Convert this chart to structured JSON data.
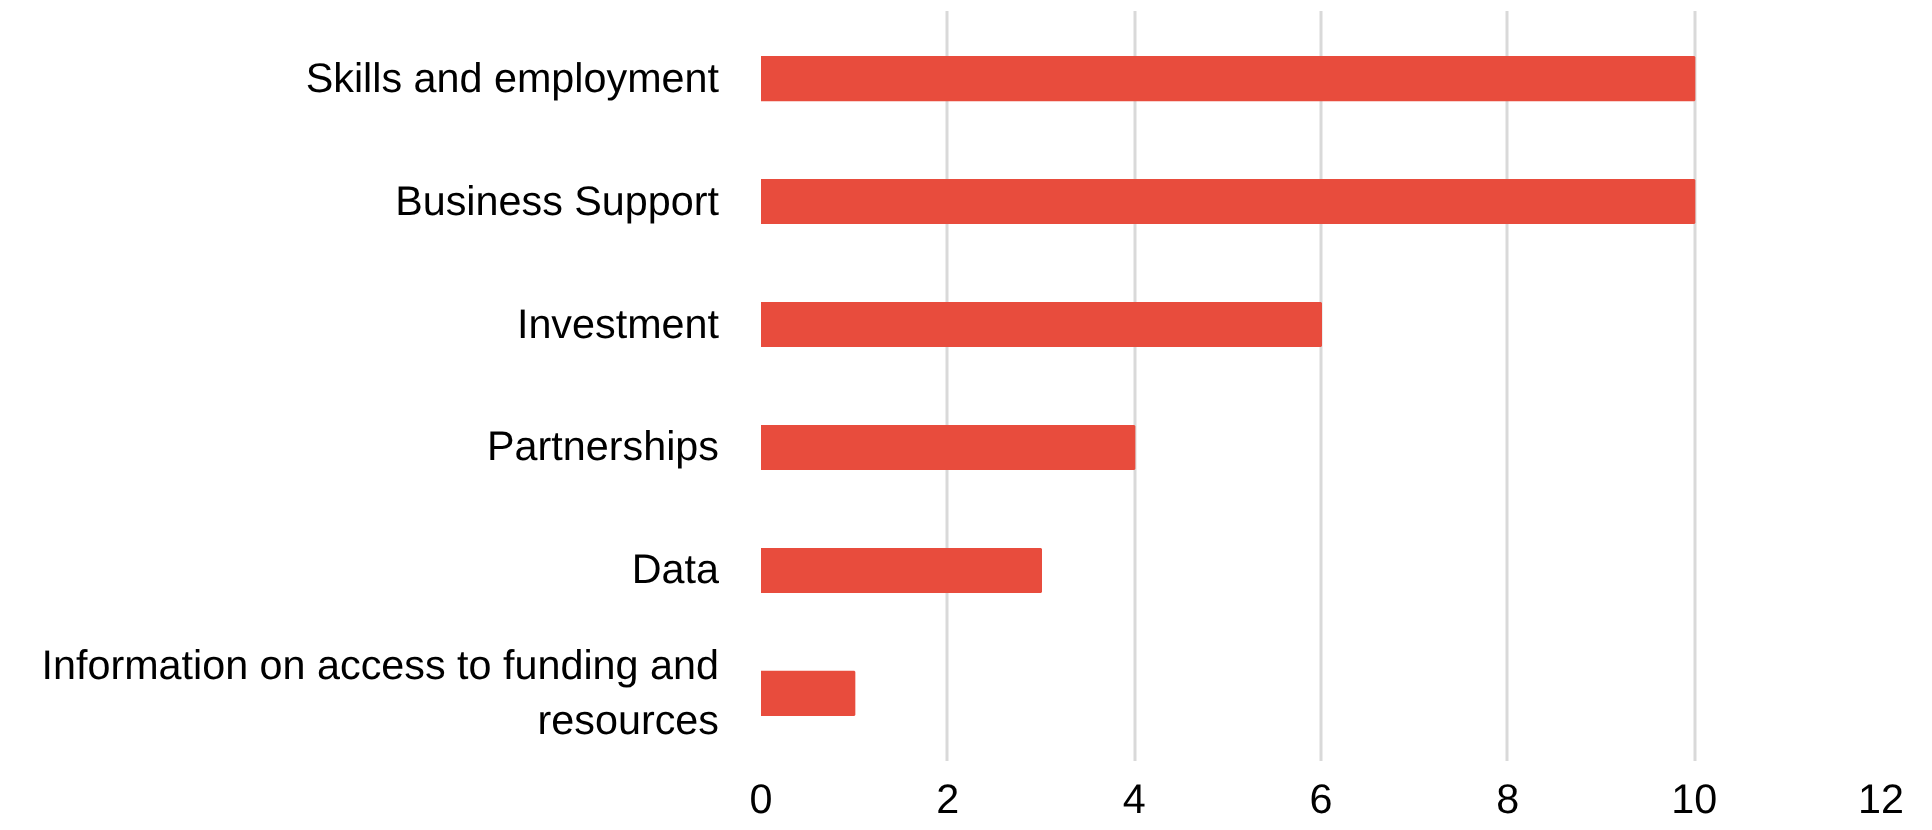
{
  "chart_data": {
    "type": "bar",
    "orientation": "horizontal",
    "categories": [
      "Skills and employment",
      "Business Support",
      "Investment",
      "Partnerships",
      "Data",
      "Information on access to funding and resources"
    ],
    "values": [
      10,
      10,
      6,
      4,
      3,
      1
    ],
    "color": "#e84c3d",
    "xlim": [
      0,
      12
    ],
    "xticks": [
      0,
      2,
      4,
      6,
      8,
      10,
      12
    ],
    "grid": "x"
  }
}
